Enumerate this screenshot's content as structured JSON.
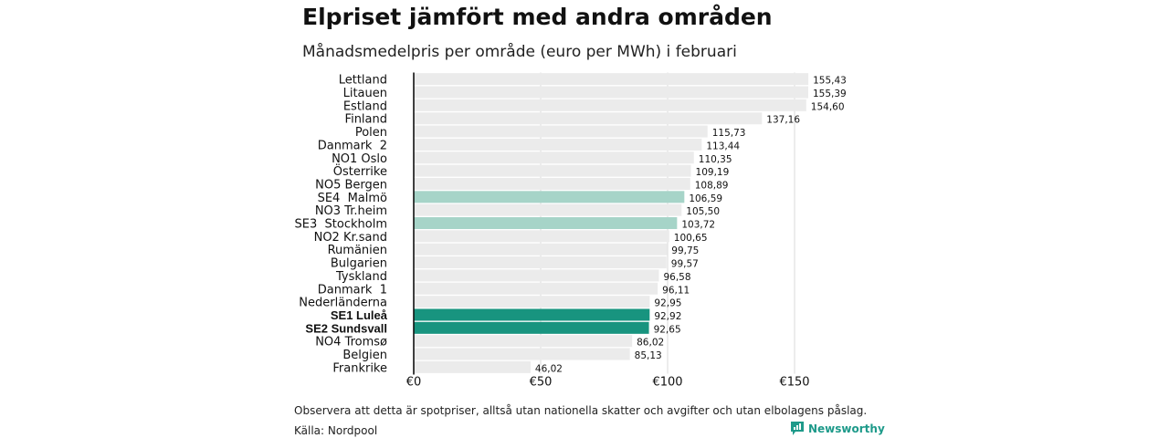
{
  "title": "Elpriset jämfört med andra områden",
  "subtitle": "Månadsmedelpris per område (euro per MWh) i februari",
  "footnote": "Observera att detta är spotpriser, alltså utan nationella skatter och avgifter och utan elbolagens påslag.",
  "source": "Källa: Nordpool",
  "brand": "Newsworthy",
  "colors": {
    "default_bar": "#ebebeb",
    "light_highlight": "#a6d4c8",
    "dark_highlight": "#18947f",
    "axis": "#111111",
    "brand": "#1e9a8a"
  },
  "chart_data": {
    "type": "bar",
    "orientation": "horizontal",
    "title": "Elpriset jämfört med andra områden",
    "subtitle": "Månadsmedelpris per område (euro per MWh) i februari",
    "xlabel": "",
    "ylabel": "",
    "xlim": [
      0,
      160
    ],
    "xticks": [
      0,
      50,
      100,
      150
    ],
    "xtick_labels": [
      "€0",
      "€50",
      "€100",
      "€150"
    ],
    "grid": true,
    "categories": [
      "Lettland",
      "Litauen",
      "Estland",
      "Finland",
      "Polen",
      "Danmark  2",
      "NO1 Oslo",
      "Österrike",
      "NO5 Bergen",
      "SE4  Malmö",
      "NO3 Tr.heim",
      "SE3  Stockholm",
      "NO2 Kr.sand",
      "Rumänien",
      "Bulgarien",
      "Tyskland",
      "Danmark  1",
      "Nederländerna",
      "SE1 Luleå",
      "SE2 Sundsvall",
      "NO4 Tromsø",
      "Belgien",
      "Frankrike"
    ],
    "values": [
      155.43,
      155.39,
      154.6,
      137.16,
      115.73,
      113.44,
      110.35,
      109.19,
      108.89,
      106.59,
      105.5,
      103.72,
      100.65,
      99.75,
      99.57,
      96.58,
      96.11,
      92.95,
      92.92,
      92.65,
      86.02,
      85.13,
      46.02
    ],
    "value_labels": [
      "155,43",
      "155,39",
      "154,60",
      "137,16",
      "115,73",
      "113,44",
      "110,35",
      "109,19",
      "108,89",
      "106,59",
      "105,50",
      "103,72",
      "100,65",
      "99,75",
      "99,57",
      "96,58",
      "96,11",
      "92,95",
      "92,92",
      "92,65",
      "86,02",
      "85,13",
      "46,02"
    ],
    "highlight": [
      "none",
      "none",
      "none",
      "none",
      "none",
      "none",
      "none",
      "none",
      "none",
      "light",
      "none",
      "light",
      "none",
      "none",
      "none",
      "none",
      "none",
      "none",
      "dark",
      "dark",
      "none",
      "none",
      "none"
    ]
  }
}
